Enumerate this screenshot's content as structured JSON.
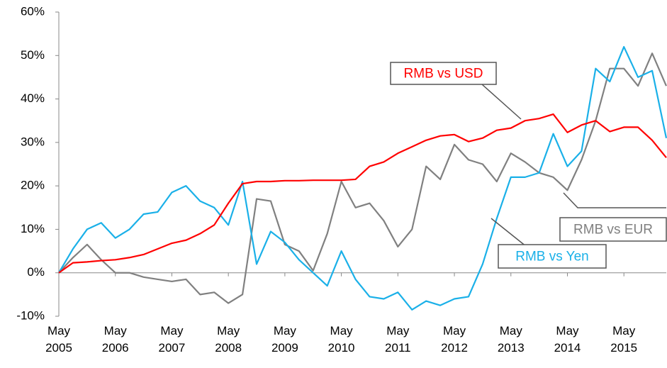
{
  "chart_data": {
    "type": "line",
    "x": [
      2005.33,
      2005.58,
      2005.83,
      2006.08,
      2006.33,
      2006.58,
      2006.83,
      2007.08,
      2007.33,
      2007.58,
      2007.83,
      2008.08,
      2008.33,
      2008.58,
      2008.83,
      2009.08,
      2009.33,
      2009.58,
      2009.83,
      2010.08,
      2010.33,
      2010.58,
      2010.83,
      2011.08,
      2011.33,
      2011.58,
      2011.83,
      2012.08,
      2012.33,
      2012.58,
      2012.83,
      2013.08,
      2013.33,
      2013.58,
      2013.83,
      2014.08,
      2014.33,
      2014.58,
      2014.83,
      2015.08,
      2015.33,
      2015.58,
      2015.83,
      2016.08
    ],
    "series": [
      {
        "name": "RMB vs USD",
        "color": "#ff0000",
        "values": [
          0,
          2.3,
          2.5,
          2.8,
          3,
          3.5,
          4.2,
          5.5,
          6.8,
          7.5,
          9,
          11,
          16,
          20.5,
          21,
          21,
          21.2,
          21.2,
          21.3,
          21.3,
          21.3,
          21.5,
          24.5,
          25.5,
          27.5,
          29,
          30.5,
          31.5,
          31.8,
          30.2,
          31,
          32.8,
          33.3,
          35,
          35.5,
          36.5,
          32.3,
          34,
          35,
          32.5,
          33.5,
          33.5,
          30.5,
          26.5
        ]
      },
      {
        "name": "RMB vs EUR",
        "color": "#808080",
        "values": [
          0,
          3.5,
          6.5,
          3,
          0,
          0,
          -1,
          -1.5,
          -2,
          -1.5,
          -5,
          -4.5,
          -7,
          -5,
          17,
          16.5,
          6.5,
          5,
          0.5,
          9,
          21,
          15,
          16,
          12,
          6,
          10,
          24.5,
          21.5,
          29.5,
          26,
          25,
          21,
          27.5,
          25.5,
          23,
          22,
          19,
          26,
          35,
          47,
          47,
          43,
          50.5,
          43
        ]
      },
      {
        "name": "RMB vs Yen",
        "color": "#1ab0e8",
        "values": [
          0,
          5.5,
          10,
          11.5,
          8,
          10,
          13.5,
          14,
          18.5,
          20,
          16.5,
          15,
          11,
          21,
          2,
          9.5,
          7,
          3,
          0,
          -3,
          5,
          -1.5,
          -5.5,
          -6,
          -4.5,
          -8.5,
          -6.5,
          -7.5,
          -6,
          -5.5,
          2,
          12.5,
          22,
          22,
          23,
          32,
          24.5,
          28,
          47,
          44,
          52,
          45,
          46.5,
          31
        ]
      }
    ],
    "xlim": [
      2005.33,
      2016.08
    ],
    "xticks": [
      {
        "value": 2005.33,
        "label": "May 2005"
      },
      {
        "value": 2006.33,
        "label": "May 2006"
      },
      {
        "value": 2007.33,
        "label": "May 2007"
      },
      {
        "value": 2008.33,
        "label": "May 2008"
      },
      {
        "value": 2009.33,
        "label": "May 2009"
      },
      {
        "value": 2010.33,
        "label": "May 2010"
      },
      {
        "value": 2011.33,
        "label": "May 2011"
      },
      {
        "value": 2012.33,
        "label": "May 2012"
      },
      {
        "value": 2013.33,
        "label": "May 2013"
      },
      {
        "value": 2014.33,
        "label": "May 2014"
      },
      {
        "value": 2015.33,
        "label": "May 2015"
      }
    ],
    "ylim": [
      -10,
      60
    ],
    "yticks": [
      {
        "value": -10,
        "label": "-10%"
      },
      {
        "value": 0,
        "label": "0%"
      },
      {
        "value": 10,
        "label": "10%"
      },
      {
        "value": 20,
        "label": "20%"
      },
      {
        "value": 30,
        "label": "30%"
      },
      {
        "value": 40,
        "label": "40%"
      },
      {
        "value": 50,
        "label": "50%"
      },
      {
        "value": 60,
        "label": "60%"
      }
    ],
    "grid": false
  }
}
